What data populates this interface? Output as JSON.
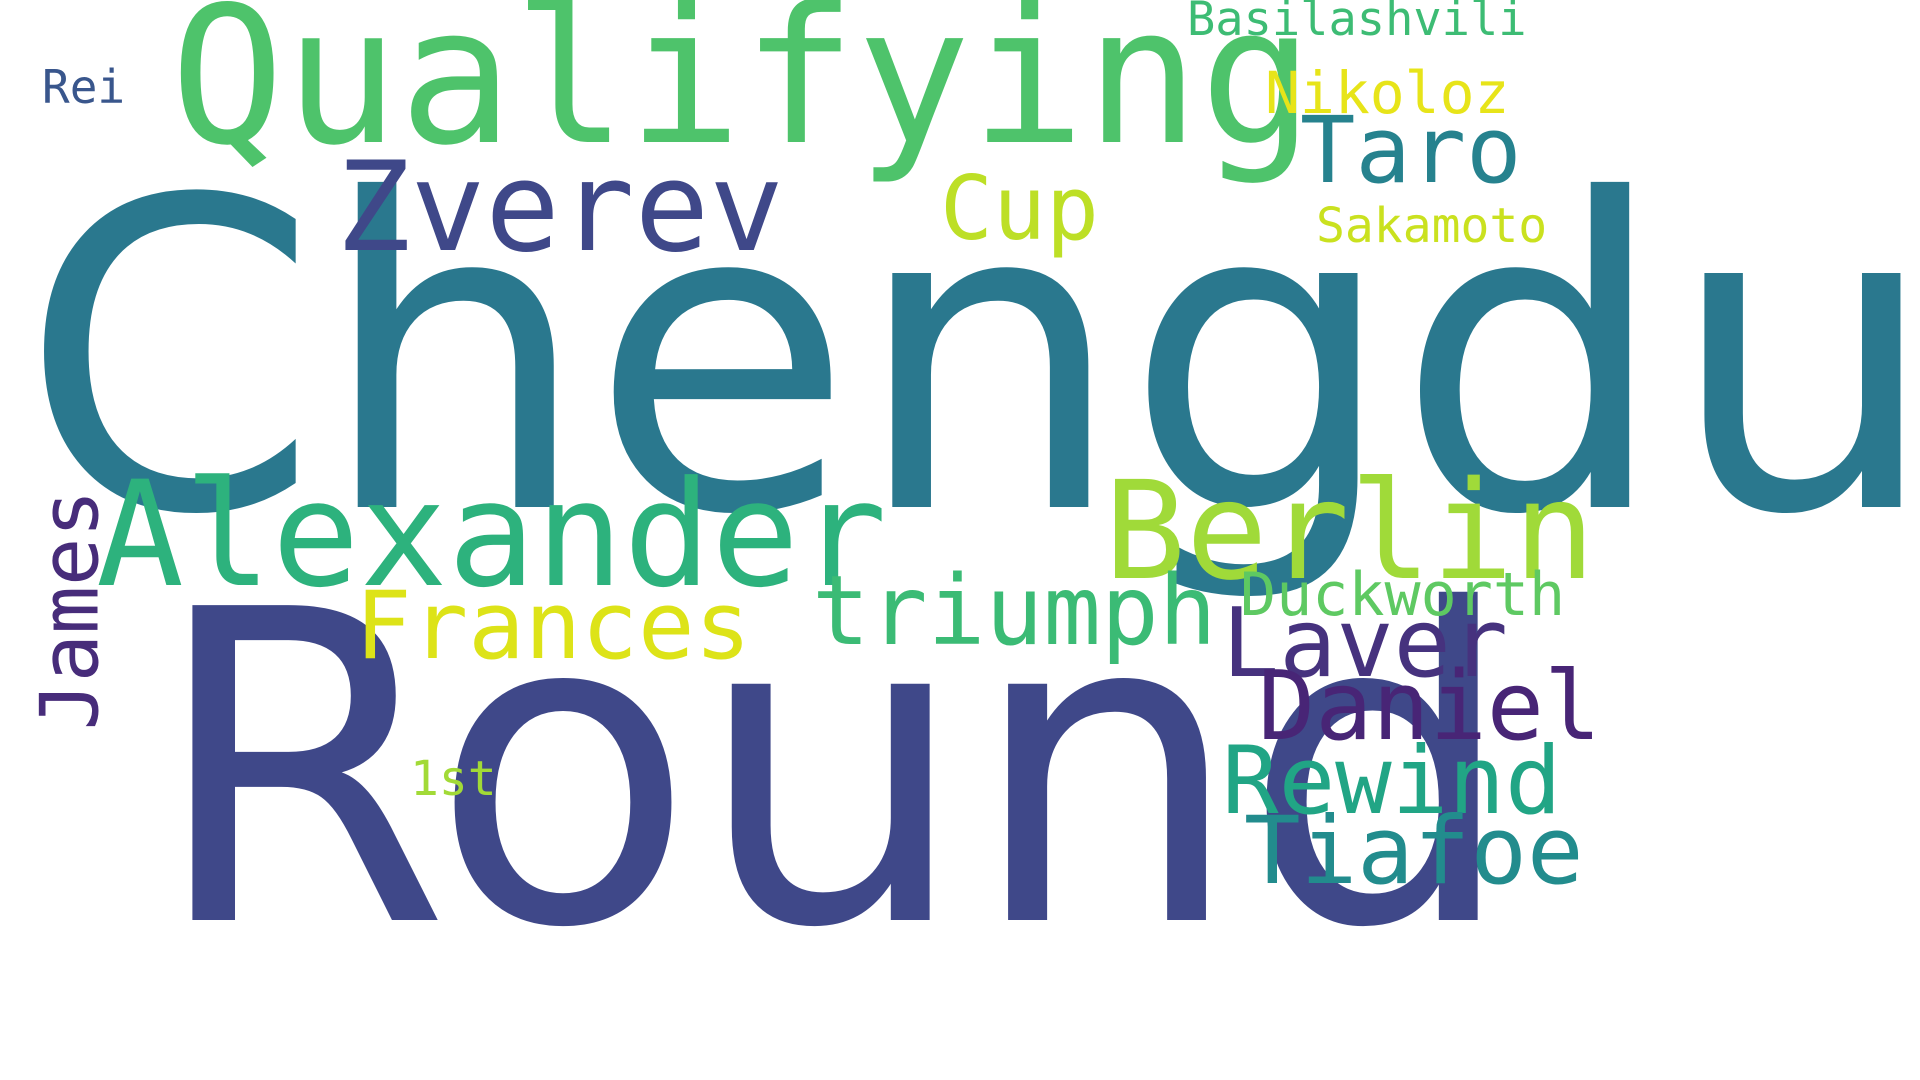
{
  "words": [
    {
      "text": "Chengdu",
      "color": "#2a788e"
    },
    {
      "text": "Round",
      "color": "#3f4889"
    },
    {
      "text": "Qualifying",
      "color": "#4ec36b"
    },
    {
      "text": "Alexander",
      "color": "#2db27d"
    },
    {
      "text": "Berlin",
      "color": "#a0da39"
    },
    {
      "text": "Zverev",
      "color": "#3f4889"
    },
    {
      "text": "triumph",
      "color": "#3bbb75"
    },
    {
      "text": "Frances",
      "color": "#dde318"
    },
    {
      "text": "Laver",
      "color": "#46327e"
    },
    {
      "text": "Daniel",
      "color": "#482576"
    },
    {
      "text": "Rewind",
      "color": "#21a585"
    },
    {
      "text": "Tiafoe",
      "color": "#228c8d"
    },
    {
      "text": "Taro",
      "color": "#26828e"
    },
    {
      "text": "Cup",
      "color": "#bddf26"
    },
    {
      "text": "James",
      "color": "#472c7a"
    },
    {
      "text": "Duckworth",
      "color": "#5ec962"
    },
    {
      "text": "Nikoloz",
      "color": "#e7e419"
    },
    {
      "text": "Sakamoto",
      "color": "#cae11f"
    },
    {
      "text": "Basilashvili",
      "color": "#3dbc74"
    },
    {
      "text": "Rei",
      "color": "#39568c"
    },
    {
      "text": "1st",
      "color": "#a2da37"
    }
  ]
}
